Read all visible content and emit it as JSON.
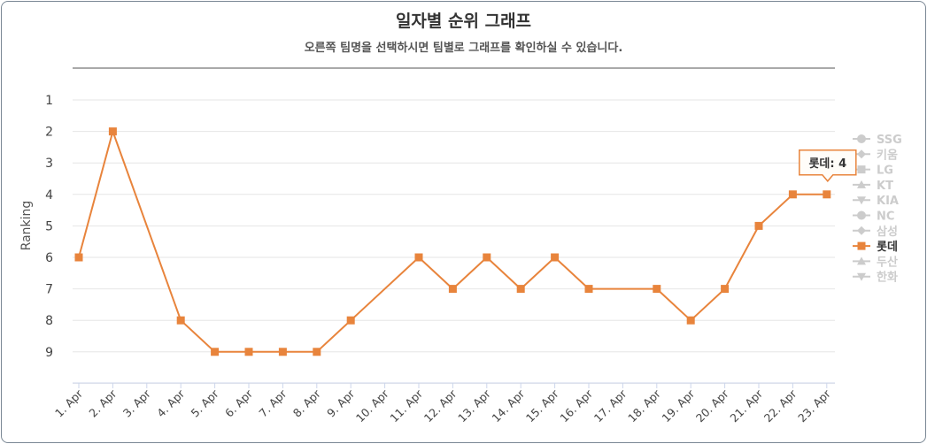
{
  "chart_data": {
    "type": "line",
    "title": "일자별 순위 그래프",
    "subtitle": "오른쪽 팀명을 선택하시면 팀별로 그래프를 확인하실 수 있습니다.",
    "ylabel": "Ranking",
    "xlabel": "",
    "y_reversed": true,
    "y_ticks": [
      1,
      2,
      3,
      4,
      5,
      6,
      7,
      8,
      9
    ],
    "categories": [
      "1. Apr",
      "2. Apr",
      "3. Apr",
      "4. Apr",
      "5. Apr",
      "6. Apr",
      "7. Apr",
      "8. Apr",
      "9. Apr",
      "10. Apr",
      "11. Apr",
      "12. Apr",
      "13. Apr",
      "14. Apr",
      "15. Apr",
      "16. Apr",
      "17. Apr",
      "18. Apr",
      "19. Apr",
      "20. Apr",
      "21. Apr",
      "22. Apr",
      "23. Apr"
    ],
    "series": [
      {
        "name": "롯데",
        "values": [
          6,
          2,
          null,
          8,
          9,
          9,
          9,
          9,
          8,
          null,
          6,
          7,
          6,
          7,
          6,
          7,
          null,
          7,
          8,
          7,
          5,
          4,
          4
        ],
        "color": "#e8843c",
        "marker": "square",
        "visible": true
      }
    ],
    "legend": [
      {
        "label": "SSG",
        "marker": "circle",
        "active": false
      },
      {
        "label": "키움",
        "marker": "diamond",
        "active": false
      },
      {
        "label": "LG",
        "marker": "square",
        "active": false
      },
      {
        "label": "KT",
        "marker": "triangle",
        "active": false
      },
      {
        "label": "KIA",
        "marker": "triangle-down",
        "active": false
      },
      {
        "label": "NC",
        "marker": "circle",
        "active": false
      },
      {
        "label": "삼성",
        "marker": "diamond",
        "active": false
      },
      {
        "label": "롯데",
        "marker": "square",
        "active": true
      },
      {
        "label": "두산",
        "marker": "triangle",
        "active": false
      },
      {
        "label": "한화",
        "marker": "triangle-down",
        "active": false
      }
    ],
    "legend_position": "right",
    "tooltip": {
      "series": "롯데",
      "category": "23. Apr",
      "text": "롯데: 4"
    },
    "grid": true,
    "inactive_color": "#cccccc",
    "active_legend_color": "#333333"
  }
}
